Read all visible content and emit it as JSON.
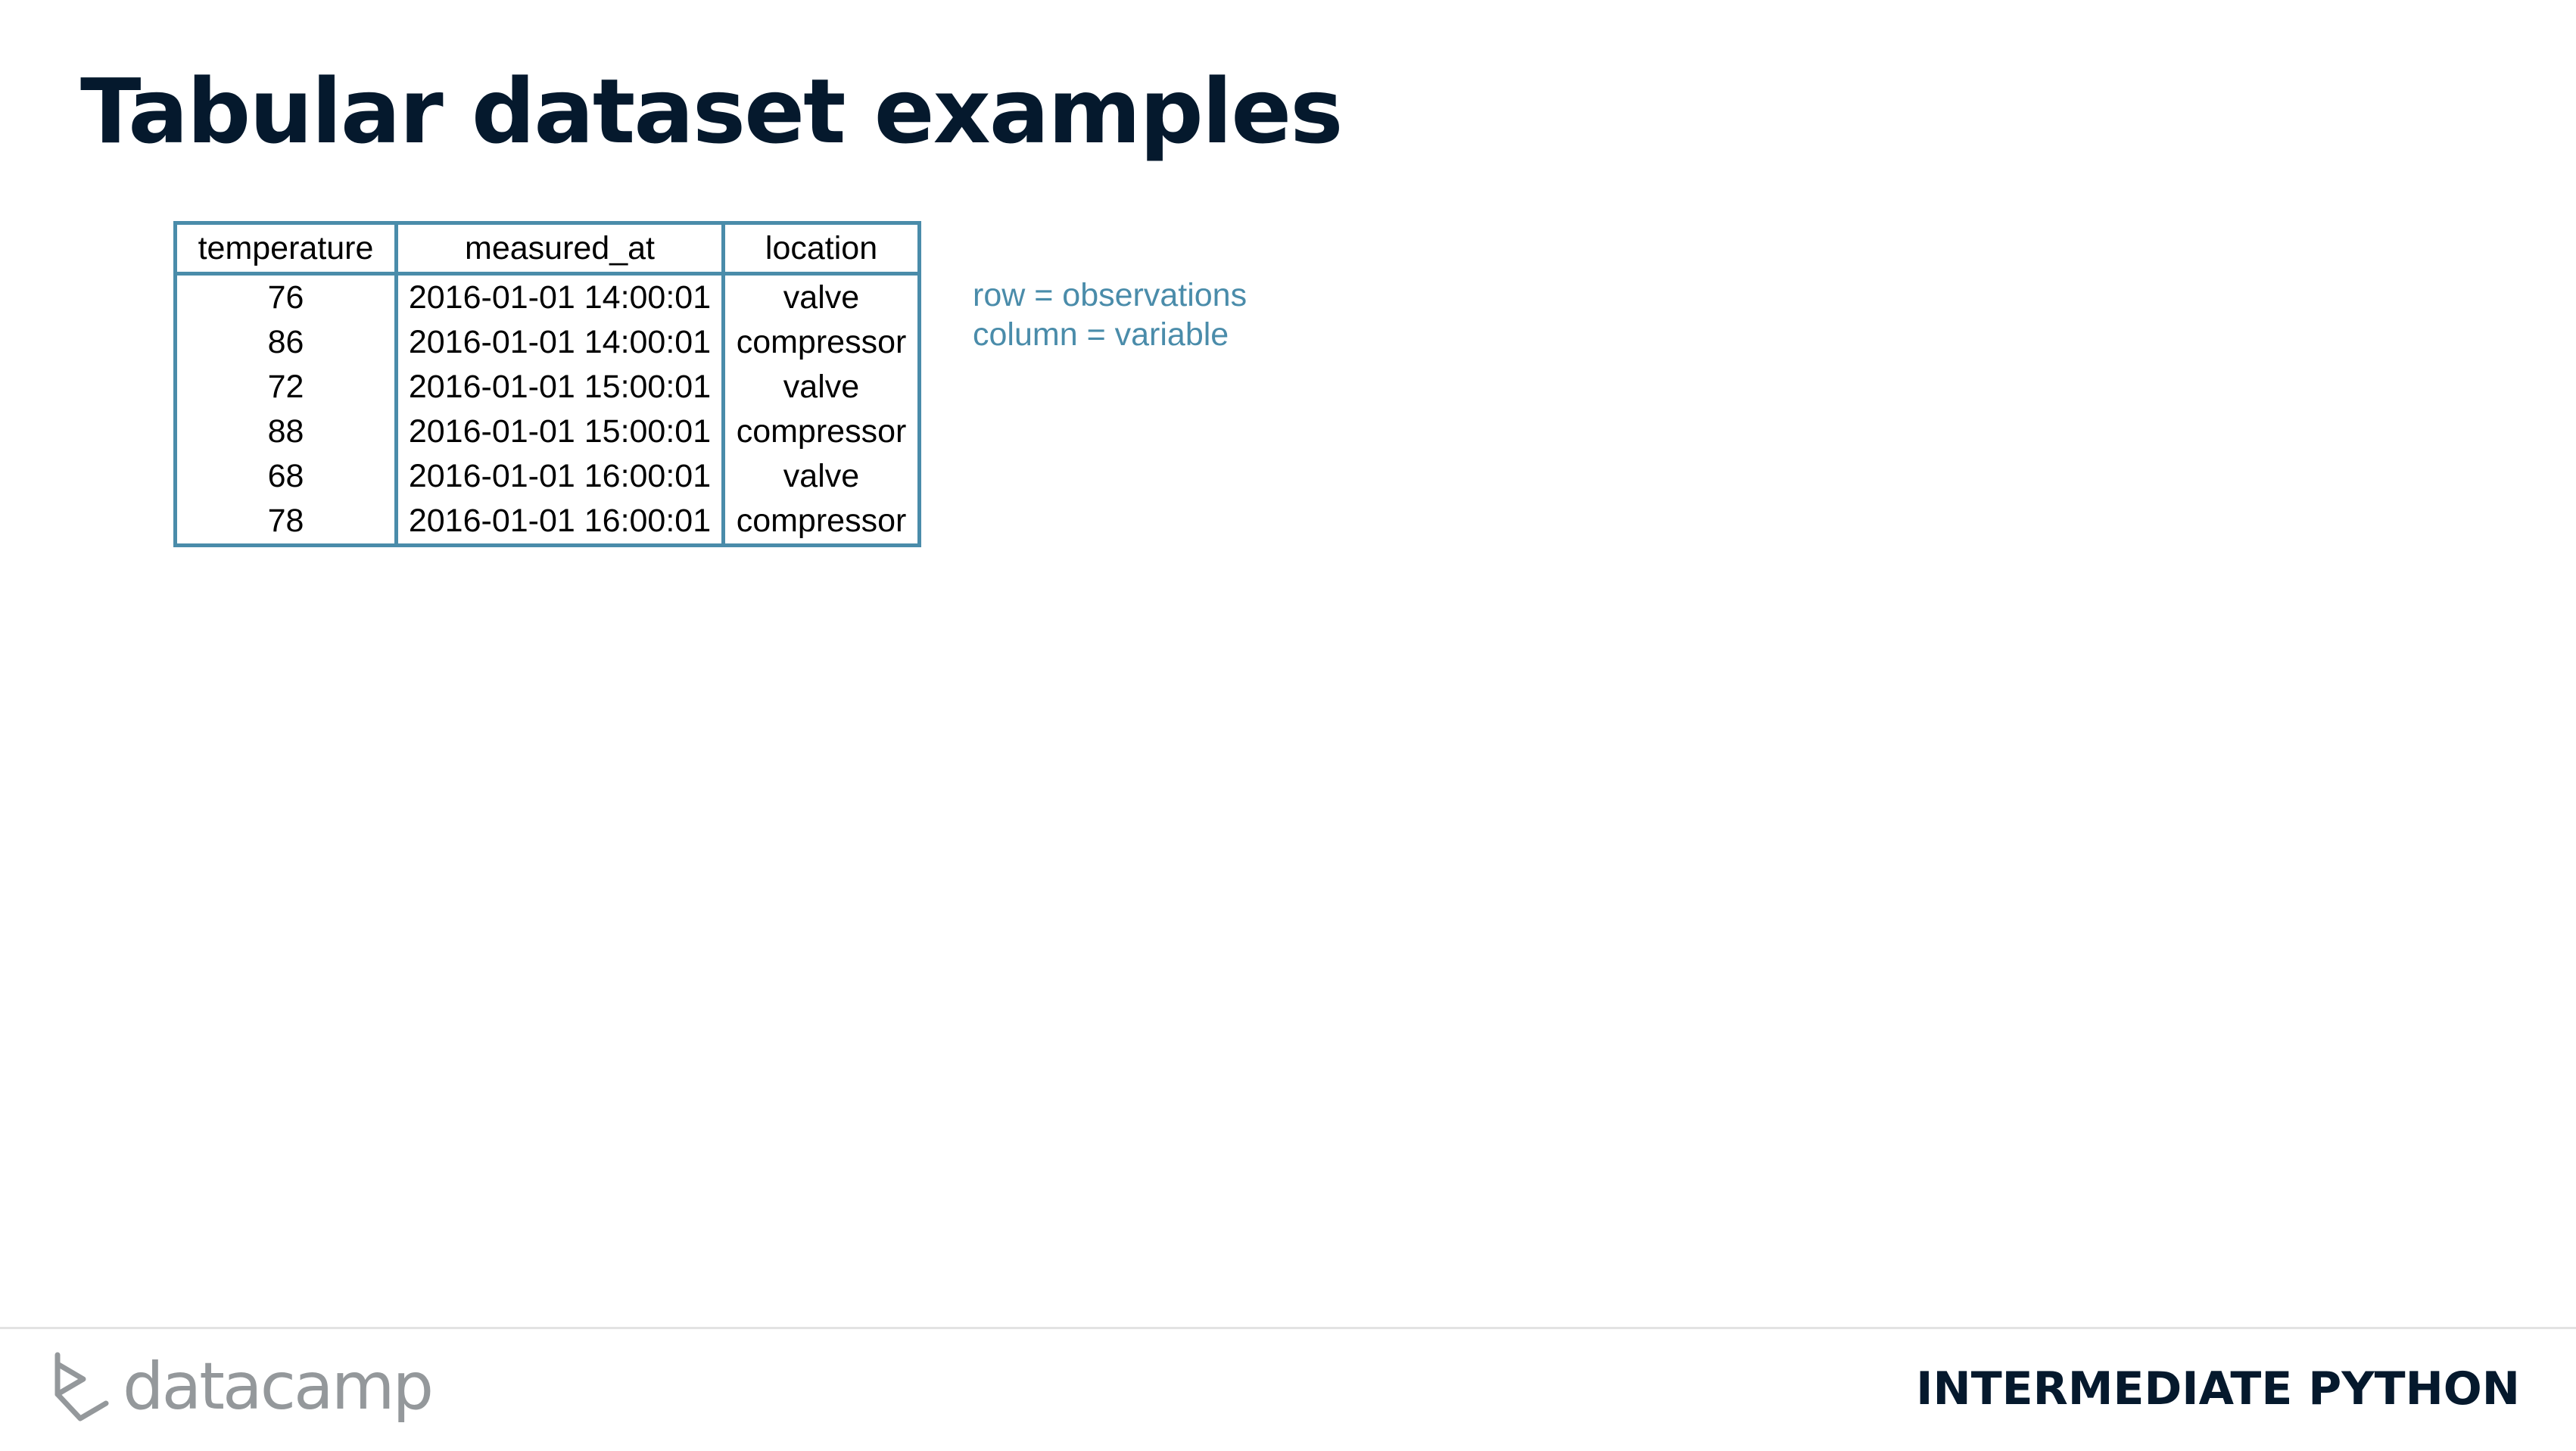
{
  "slide": {
    "title": "Tabular dataset examples"
  },
  "table": {
    "headers": [
      "temperature",
      "measured_at",
      "location"
    ],
    "rows": [
      [
        "76",
        "2016-01-01 14:00:01",
        "valve"
      ],
      [
        "86",
        "2016-01-01 14:00:01",
        "compressor"
      ],
      [
        "72",
        "2016-01-01 15:00:01",
        "valve"
      ],
      [
        "88",
        "2016-01-01 15:00:01",
        "compressor"
      ],
      [
        "68",
        "2016-01-01 16:00:01",
        "valve"
      ],
      [
        "78",
        "2016-01-01 16:00:01",
        "compressor"
      ]
    ]
  },
  "notes": {
    "row_note": "row = observations",
    "column_note": "column = variable"
  },
  "footer": {
    "logo_text": "datacamp",
    "logo_icon": "datacamp-logo-icon",
    "course": "INTERMEDIATE PYTHON"
  },
  "colors": {
    "title": "#05192d",
    "accent": "#4a8caa",
    "logo_gray": "#94989b",
    "divider": "#e3e3e3"
  }
}
